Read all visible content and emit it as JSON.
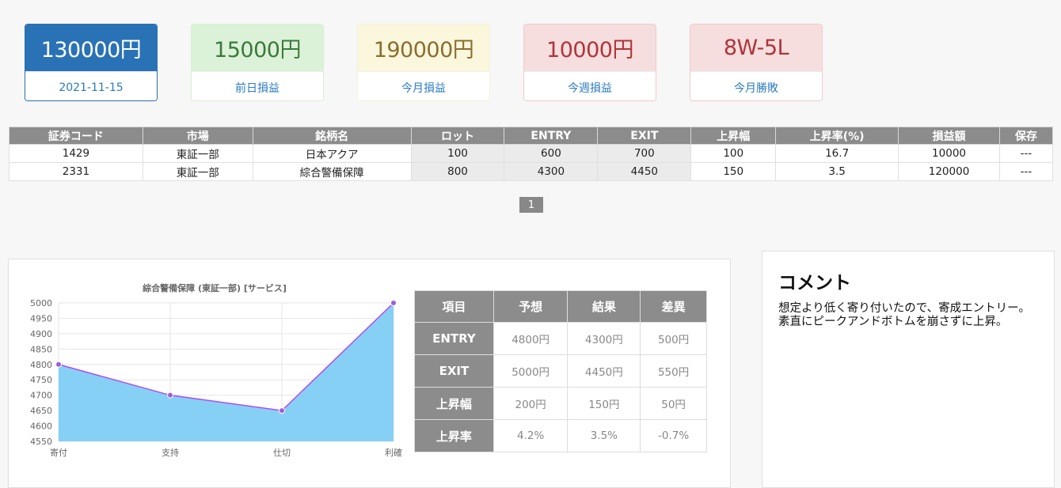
{
  "summary": {
    "balance": "130000円",
    "date": "2021-11-15",
    "prev_day_value": "15000円",
    "prev_day_label": "前日損益",
    "month_value": "190000円",
    "month_label": "今月損益",
    "week_value": "10000円",
    "week_label": "今週損益",
    "winloss_value": "8W-5L",
    "winloss_label": "今月勝敗"
  },
  "trades": {
    "headers": [
      "証券コード",
      "市場",
      "銘柄名",
      "ロット",
      "ENTRY",
      "EXIT",
      "上昇幅",
      "上昇率(%)",
      "損益額",
      "保存"
    ],
    "rows": [
      [
        "1429",
        "東証一部",
        "日本アクア",
        "100",
        "600",
        "700",
        "100",
        "16.7",
        "10000",
        "---"
      ],
      [
        "2331",
        "東証一部",
        "綜合警備保障",
        "800",
        "4300",
        "4450",
        "150",
        "3.5",
        "120000",
        "---"
      ]
    ]
  },
  "pagination": {
    "current": "1"
  },
  "chart_data": {
    "type": "area",
    "title": "綜合警備保障 (東証一部) [サービス]",
    "categories": [
      "寄付",
      "支持",
      "仕切",
      "利確"
    ],
    "values": [
      4800,
      4700,
      4650,
      5000
    ],
    "ylim": [
      4550,
      5000
    ],
    "yticks": [
      5000,
      4950,
      4900,
      4850,
      4800,
      4750,
      4700,
      4650,
      4600,
      4550
    ],
    "grid": true,
    "colors": {
      "fill": "#7fcdf5",
      "line": "#b04cf0",
      "point": "#a05ce0"
    }
  },
  "comparison": {
    "headers": [
      "項目",
      "予想",
      "結果",
      "差異"
    ],
    "rows": [
      [
        "ENTRY",
        "4800円",
        "4300円",
        "500円"
      ],
      [
        "EXIT",
        "5000円",
        "4450円",
        "550円"
      ],
      [
        "上昇幅",
        "200円",
        "150円",
        "50円"
      ],
      [
        "上昇率",
        "4.2%",
        "3.5%",
        "-0.7%"
      ]
    ]
  },
  "comment": {
    "title": "コメント",
    "text": "想定より低く寄り付いたので、寄成エントリー。素直にピークアンドボトムを崩さずに上昇。"
  }
}
